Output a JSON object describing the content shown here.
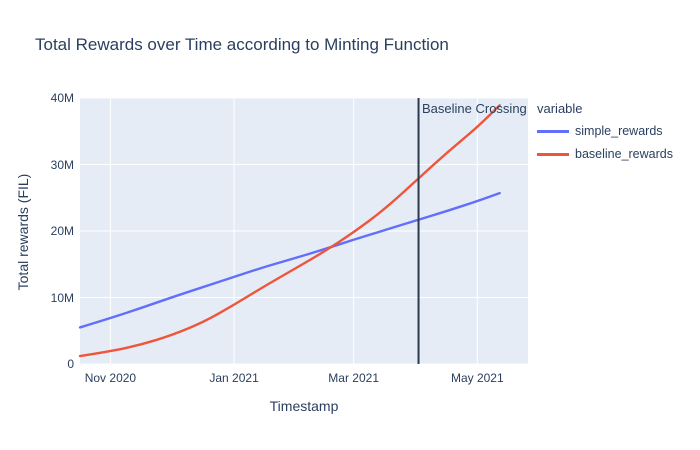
{
  "page": {
    "title": "Total Rewards over Time according to Minting Function"
  },
  "axes": {
    "xlabel": "Timestamp",
    "ylabel": "Total rewards (FIL)"
  },
  "annotation": {
    "label": "Baseline Crossing"
  },
  "legend": {
    "title": "variable",
    "items": [
      {
        "label": "simple_rewards",
        "color": "#636efa"
      },
      {
        "label": "baseline_rewards",
        "color": "#ef553b"
      }
    ]
  },
  "colors": {
    "plot_background": "#e5ecf6",
    "gridline": "#ffffff",
    "text": "#2a3f5f",
    "vline": "#2b3a4f"
  },
  "chart_data": {
    "type": "line",
    "title": "Total Rewards over Time according to Minting Function",
    "xlabel": "Timestamp",
    "ylabel": "Total rewards (FIL)",
    "legend_title": "variable",
    "legend_position": "right",
    "grid": true,
    "plot_bgcolor": "#e5ecf6",
    "ylim": [
      0,
      40000000
    ],
    "y_ticks": [
      {
        "label": "0",
        "value": 0
      },
      {
        "label": "10M",
        "value": 10000000
      },
      {
        "label": "20M",
        "value": 20000000
      },
      {
        "label": "30M",
        "value": 30000000
      },
      {
        "label": "40M",
        "value": 40000000
      }
    ],
    "xlim_days": [
      0,
      221
    ],
    "xlim_dates": [
      "2020-10-17",
      "2021-05-26"
    ],
    "x_ticks": [
      {
        "label": "Nov 2020",
        "day": 15
      },
      {
        "label": "Jan 2021",
        "day": 76
      },
      {
        "label": "Mar 2021",
        "day": 135
      },
      {
        "label": "May 2021",
        "day": 196
      }
    ],
    "x_days": [
      0,
      15,
      30,
      45,
      61,
      76,
      91,
      107,
      121,
      135,
      150,
      167,
      181,
      196,
      207
    ],
    "x_dates": [
      "2020-10-17",
      "2020-11-01",
      "2020-11-16",
      "2020-12-01",
      "2020-12-17",
      "2021-01-01",
      "2021-01-16",
      "2021-02-01",
      "2021-02-15",
      "2021-03-01",
      "2021-03-16",
      "2021-04-02",
      "2021-04-16",
      "2021-05-01",
      "2021-05-12"
    ],
    "series": [
      {
        "name": "simple_rewards",
        "color": "#636efa",
        "values": [
          5500000,
          6900000,
          8400000,
          10000000,
          11600000,
          13100000,
          14600000,
          16000000,
          17300000,
          18700000,
          20100000,
          21700000,
          23000000,
          24500000,
          25700000
        ]
      },
      {
        "name": "baseline_rewards",
        "color": "#ef553b",
        "values": [
          1200000,
          1900000,
          2900000,
          4300000,
          6300000,
          8900000,
          11700000,
          14500000,
          17000000,
          19800000,
          23200000,
          27900000,
          31800000,
          35600000,
          38900000
        ]
      }
    ],
    "vline": {
      "day": 167,
      "date": "2021-04-02",
      "label": "Baseline Crossing",
      "color": "#2b3a4f"
    }
  }
}
